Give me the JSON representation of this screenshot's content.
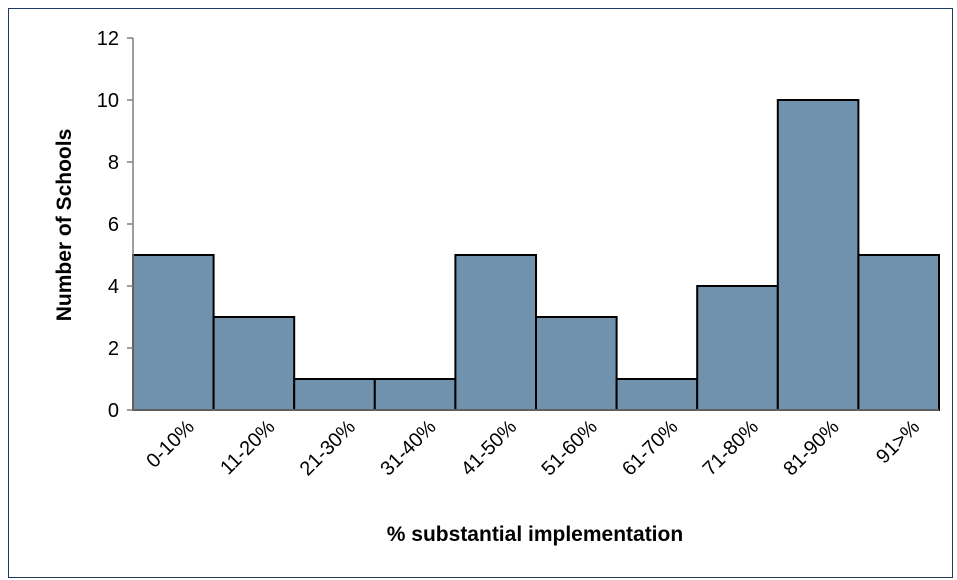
{
  "chart_data": {
    "type": "bar",
    "title": "",
    "xlabel": "% substantial implementation",
    "ylabel": "Number of Schools",
    "categories": [
      "0-10%",
      "11-20%",
      "21-30%",
      "31-40%",
      "41-50%",
      "51-60%",
      "61-70%",
      "71-80%",
      "81-90%",
      "91>%"
    ],
    "values": [
      5,
      3,
      1,
      1,
      5,
      3,
      1,
      4,
      10,
      5
    ],
    "ylim": [
      0,
      12
    ],
    "yticks": [
      0,
      2,
      4,
      6,
      8,
      10,
      12
    ],
    "grid": false,
    "legend": "none",
    "colors": {
      "bar_fill": "#7092ac",
      "bar_stroke": "#000000",
      "frame": "#1f3864"
    }
  }
}
